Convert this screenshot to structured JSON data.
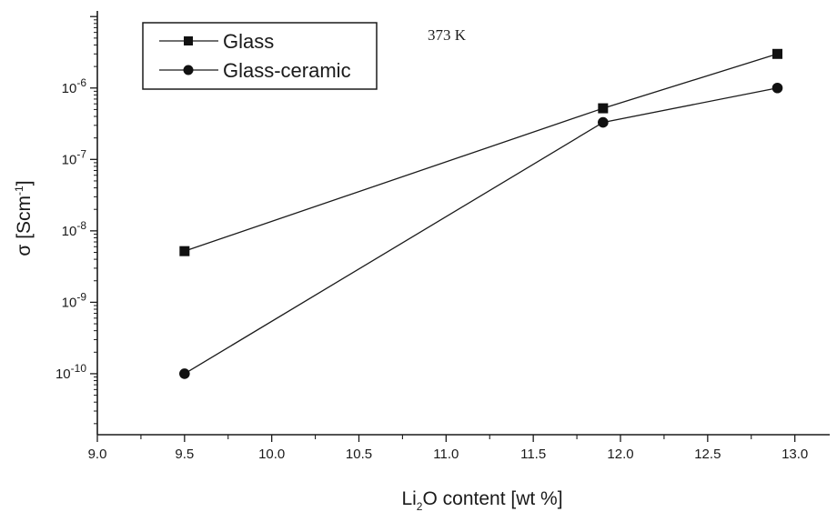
{
  "chart_data": {
    "type": "line",
    "x": [
      9.5,
      11.9,
      12.9
    ],
    "series": [
      {
        "name": "Glass",
        "marker": "square",
        "values": [
          5.2e-09,
          5.2e-07,
          3e-06
        ]
      },
      {
        "name": "Glass-ceramic",
        "marker": "circle",
        "values": [
          1e-10,
          3.3e-07,
          1e-06
        ]
      }
    ],
    "xlim": [
      9.0,
      13.2
    ],
    "xticks": [
      "9.0",
      "9.5",
      "10.0",
      "10.5",
      "11.0",
      "11.5",
      "12.0",
      "12.5",
      "13.0"
    ],
    "ylim": [
      1.4e-11,
      1.2e-05
    ],
    "yscale": "log",
    "yticks": [
      {
        "base": "10",
        "exp": "-10"
      },
      {
        "base": "10",
        "exp": "-9"
      },
      {
        "base": "10",
        "exp": "-8"
      },
      {
        "base": "10",
        "exp": "-7"
      },
      {
        "base": "10",
        "exp": "-6"
      }
    ],
    "xlabel": {
      "prefix": "Li",
      "sub": "2",
      "rest": "O  content [wt %]"
    },
    "ylabel": {
      "prefix": "σ [Scm",
      "sup": "-1",
      "suffix": "]"
    },
    "annotation": "373 K",
    "legend_position": "top-left",
    "grid": false,
    "colors": {
      "line": "#1a1a1a",
      "marker": "#111111"
    }
  }
}
